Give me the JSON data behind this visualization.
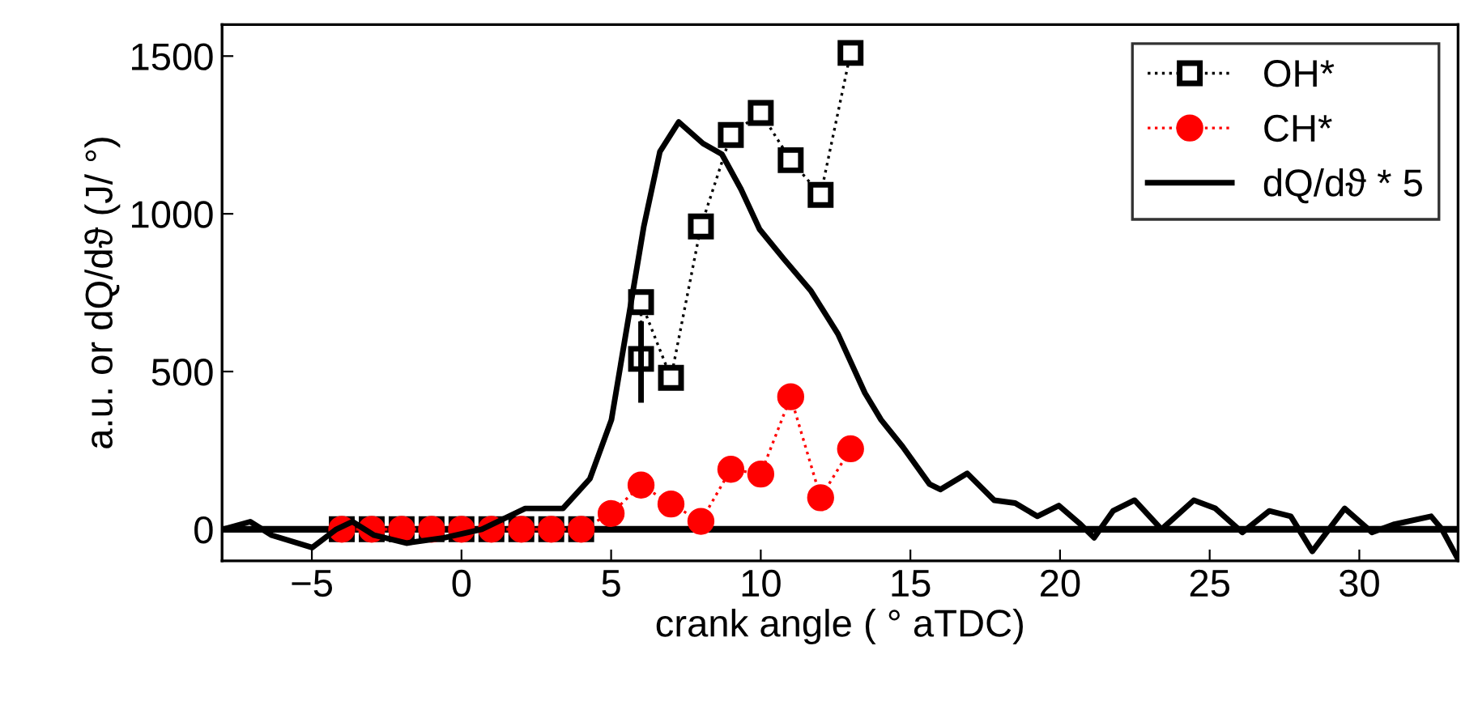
{
  "chart_data": {
    "type": "line",
    "xlabel": "crank angle ( ° aTDC)",
    "ylabel": "a.u. or dQ/dϑ (J/ °)",
    "xlim": [
      -8,
      33.3
    ],
    "ylim": [
      -100,
      1600
    ],
    "xticks": [
      -5,
      0,
      5,
      10,
      15,
      20,
      25,
      30
    ],
    "yticks": [
      0,
      500,
      1000,
      1500
    ],
    "grid": false,
    "legend": "top right",
    "ref_lines": [
      {
        "axis": "y",
        "value": 0,
        "color": "#000000",
        "line_style": "solid"
      }
    ],
    "series": [
      {
        "name": "OH*",
        "color": "#000000",
        "marker": "square",
        "line_style": "dotted",
        "x": [
          -4,
          -3,
          -2,
          -1,
          0,
          1,
          2,
          3,
          4,
          5,
          6,
          6,
          7,
          8,
          9,
          10,
          11,
          12,
          13
        ],
        "values": [
          0,
          0,
          0,
          0,
          0,
          0,
          0,
          0,
          0,
          null,
          540,
          720,
          480,
          960,
          1250,
          1320,
          1170,
          1060,
          1510
        ],
        "errors": [
          null,
          null,
          null,
          null,
          null,
          null,
          null,
          null,
          null,
          null,
          [
            410,
            650
          ],
          null,
          null,
          null,
          null,
          null,
          null,
          null,
          null
        ]
      },
      {
        "name": "CH*",
        "color": "#ff0000",
        "marker": "circle",
        "line_style": "dotted",
        "x": [
          -4,
          -3,
          -2,
          -1,
          0,
          1,
          2,
          3,
          4,
          5,
          6,
          7,
          8,
          9,
          10,
          11,
          12,
          13
        ],
        "values": [
          0,
          0,
          0,
          0,
          0,
          0,
          0,
          0,
          0,
          50,
          140,
          80,
          25,
          190,
          175,
          420,
          100,
          255
        ]
      },
      {
        "name": "dQ/dϑ * 5",
        "color": "#000000",
        "marker": "none",
        "line_style": "solid",
        "x": [
          -7.96,
          -7.06,
          -6.34,
          -4.99,
          -4.18,
          -3.64,
          -2.92,
          -1.84,
          -0.58,
          0.68,
          2.13,
          3.39,
          4.29,
          5.01,
          5.55,
          6.09,
          6.63,
          7.26,
          8.07,
          8.7,
          9.34,
          9.96,
          10.77,
          11.68,
          12.58,
          13.48,
          14.02,
          14.74,
          15.64,
          16.0,
          16.9,
          17.8,
          18.5,
          19.24,
          19.96,
          20.69,
          21.14,
          21.77,
          22.49,
          23.39,
          24.47,
          25.19,
          26.09,
          26.99,
          27.71,
          28.43,
          29.51,
          30.42,
          31.14,
          32.4,
          32.76,
          33.3
        ],
        "values": [
          0,
          24,
          -19,
          -58,
          0,
          24,
          -19,
          -44,
          -27,
          0,
          66,
          66,
          160,
          347,
          653,
          959,
          1197,
          1291,
          1223,
          1189,
          1078,
          951,
          857,
          755,
          619,
          432,
          347,
          262,
          143,
          126,
          177,
          92,
          83,
          41,
          75,
          15,
          -27,
          58,
          92,
          0,
          92,
          66,
          -10,
          58,
          41,
          -70,
          66,
          -10,
          15,
          41,
          0,
          -95
        ]
      }
    ]
  }
}
